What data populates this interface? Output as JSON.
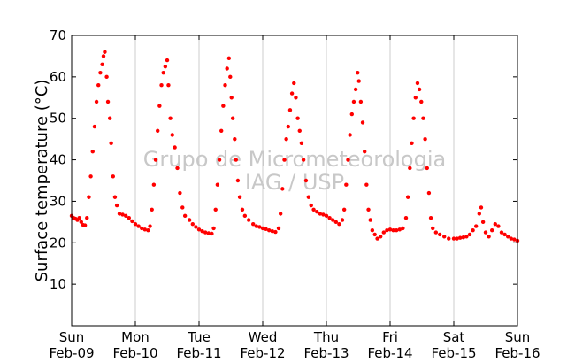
{
  "chart_data": {
    "type": "scatter",
    "ylabel": "Surface temperature (°C)",
    "xlabel": "",
    "ylim": [
      0,
      70
    ],
    "xlim": [
      0,
      7
    ],
    "yticks": [
      10,
      20,
      30,
      40,
      50,
      60,
      70
    ],
    "xticks": [
      {
        "x": 0,
        "day": "Sun",
        "date": "Feb-09"
      },
      {
        "x": 1,
        "day": "Mon",
        "date": "Feb-10"
      },
      {
        "x": 2,
        "day": "Tue",
        "date": "Feb-11"
      },
      {
        "x": 3,
        "day": "Wed",
        "date": "Feb-12"
      },
      {
        "x": 4,
        "day": "Thu",
        "date": "Feb-13"
      },
      {
        "x": 5,
        "day": "Fri",
        "date": "Feb-14"
      },
      {
        "x": 6,
        "day": "Sat",
        "date": "Feb-15"
      },
      {
        "x": 7,
        "day": "Sun",
        "date": "Feb-16"
      }
    ],
    "grid": "vertical",
    "marker_color": "#ff0000",
    "watermark": [
      "Grupo de Micrometeorologia",
      "IAG / USP"
    ],
    "series": [
      {
        "points": [
          [
            0.0,
            26.5
          ],
          [
            0.03,
            26.0
          ],
          [
            0.06,
            25.8
          ],
          [
            0.09,
            25.5
          ],
          [
            0.12,
            26.0
          ],
          [
            0.15,
            25.0
          ],
          [
            0.18,
            24.3
          ],
          [
            0.21,
            24.2
          ],
          [
            0.24,
            26.0
          ],
          [
            0.27,
            31.0
          ],
          [
            0.3,
            36.0
          ],
          [
            0.33,
            42.0
          ],
          [
            0.36,
            48.0
          ],
          [
            0.39,
            54.0
          ],
          [
            0.42,
            58.0
          ],
          [
            0.45,
            61.0
          ],
          [
            0.48,
            63.0
          ],
          [
            0.5,
            65.0
          ],
          [
            0.52,
            66.0
          ],
          [
            0.55,
            60.0
          ],
          [
            0.57,
            54.0
          ],
          [
            0.6,
            50.0
          ],
          [
            0.62,
            44.0
          ],
          [
            0.65,
            36.0
          ],
          [
            0.68,
            31.0
          ],
          [
            0.71,
            29.0
          ],
          [
            0.75,
            27.0
          ],
          [
            0.8,
            26.8
          ],
          [
            0.85,
            26.5
          ],
          [
            0.9,
            26.0
          ],
          [
            0.95,
            25.2
          ],
          [
            1.0,
            24.5
          ],
          [
            1.05,
            24.0
          ],
          [
            1.1,
            23.5
          ],
          [
            1.15,
            23.2
          ],
          [
            1.2,
            23.0
          ],
          [
            1.23,
            24.0
          ],
          [
            1.26,
            28.0
          ],
          [
            1.29,
            34.0
          ],
          [
            1.32,
            40.0
          ],
          [
            1.35,
            47.0
          ],
          [
            1.38,
            53.0
          ],
          [
            1.41,
            58.0
          ],
          [
            1.44,
            61.0
          ],
          [
            1.47,
            62.5
          ],
          [
            1.5,
            64.0
          ],
          [
            1.52,
            58.0
          ],
          [
            1.55,
            50.0
          ],
          [
            1.58,
            46.0
          ],
          [
            1.62,
            43.0
          ],
          [
            1.66,
            38.0
          ],
          [
            1.7,
            32.0
          ],
          [
            1.74,
            28.5
          ],
          [
            1.78,
            26.5
          ],
          [
            1.85,
            25.5
          ],
          [
            1.9,
            24.5
          ],
          [
            1.95,
            23.8
          ],
          [
            2.0,
            23.2
          ],
          [
            2.05,
            22.8
          ],
          [
            2.1,
            22.5
          ],
          [
            2.15,
            22.3
          ],
          [
            2.2,
            22.2
          ],
          [
            2.23,
            23.5
          ],
          [
            2.26,
            28.0
          ],
          [
            2.29,
            34.0
          ],
          [
            2.32,
            40.0
          ],
          [
            2.35,
            47.0
          ],
          [
            2.38,
            53.0
          ],
          [
            2.41,
            58.0
          ],
          [
            2.44,
            62.0
          ],
          [
            2.47,
            64.5
          ],
          [
            2.49,
            60.0
          ],
          [
            2.51,
            55.0
          ],
          [
            2.53,
            50.0
          ],
          [
            2.56,
            45.0
          ],
          [
            2.58,
            40.0
          ],
          [
            2.61,
            35.0
          ],
          [
            2.64,
            31.0
          ],
          [
            2.68,
            28.0
          ],
          [
            2.72,
            26.5
          ],
          [
            2.78,
            25.5
          ],
          [
            2.85,
            24.5
          ],
          [
            2.9,
            24.0
          ],
          [
            2.95,
            23.8
          ],
          [
            3.0,
            23.5
          ],
          [
            3.05,
            23.3
          ],
          [
            3.1,
            23.0
          ],
          [
            3.15,
            22.8
          ],
          [
            3.2,
            22.6
          ],
          [
            3.25,
            23.5
          ],
          [
            3.28,
            27.0
          ],
          [
            3.31,
            33.0
          ],
          [
            3.34,
            40.0
          ],
          [
            3.37,
            45.0
          ],
          [
            3.4,
            48.0
          ],
          [
            3.43,
            52.0
          ],
          [
            3.46,
            56.0
          ],
          [
            3.49,
            58.5
          ],
          [
            3.52,
            55.0
          ],
          [
            3.55,
            50.0
          ],
          [
            3.58,
            47.0
          ],
          [
            3.61,
            44.0
          ],
          [
            3.64,
            40.0
          ],
          [
            3.68,
            35.0
          ],
          [
            3.72,
            31.0
          ],
          [
            3.76,
            29.0
          ],
          [
            3.8,
            28.0
          ],
          [
            3.85,
            27.5
          ],
          [
            3.9,
            27.0
          ],
          [
            3.95,
            26.8
          ],
          [
            4.0,
            26.5
          ],
          [
            4.05,
            26.0
          ],
          [
            4.1,
            25.5
          ],
          [
            4.15,
            25.0
          ],
          [
            4.2,
            24.5
          ],
          [
            4.25,
            25.5
          ],
          [
            4.28,
            28.0
          ],
          [
            4.31,
            34.0
          ],
          [
            4.34,
            40.0
          ],
          [
            4.37,
            46.0
          ],
          [
            4.4,
            51.0
          ],
          [
            4.43,
            54.0
          ],
          [
            4.46,
            57.0
          ],
          [
            4.49,
            61.0
          ],
          [
            4.51,
            59.0
          ],
          [
            4.54,
            54.0
          ],
          [
            4.57,
            49.0
          ],
          [
            4.6,
            42.0
          ],
          [
            4.63,
            34.0
          ],
          [
            4.66,
            28.0
          ],
          [
            4.69,
            25.5
          ],
          [
            4.72,
            23.0
          ],
          [
            4.76,
            22.0
          ],
          [
            4.8,
            21.0
          ],
          [
            4.85,
            21.5
          ],
          [
            4.9,
            22.5
          ],
          [
            4.95,
            23.0
          ],
          [
            5.0,
            23.2
          ],
          [
            5.05,
            23.0
          ],
          [
            5.1,
            23.0
          ],
          [
            5.15,
            23.2
          ],
          [
            5.2,
            23.5
          ],
          [
            5.25,
            26.0
          ],
          [
            5.28,
            31.0
          ],
          [
            5.31,
            38.0
          ],
          [
            5.34,
            44.0
          ],
          [
            5.37,
            50.0
          ],
          [
            5.4,
            55.0
          ],
          [
            5.43,
            58.5
          ],
          [
            5.46,
            57.0
          ],
          [
            5.49,
            54.0
          ],
          [
            5.52,
            50.0
          ],
          [
            5.55,
            45.0
          ],
          [
            5.58,
            38.0
          ],
          [
            5.61,
            32.0
          ],
          [
            5.64,
            26.0
          ],
          [
            5.67,
            23.5
          ],
          [
            5.72,
            22.5
          ],
          [
            5.78,
            22.0
          ],
          [
            5.85,
            21.5
          ],
          [
            5.92,
            21.0
          ],
          [
            6.0,
            21.0
          ],
          [
            6.05,
            21.0
          ],
          [
            6.1,
            21.2
          ],
          [
            6.15,
            21.3
          ],
          [
            6.2,
            21.5
          ],
          [
            6.25,
            22.0
          ],
          [
            6.3,
            23.0
          ],
          [
            6.35,
            24.0
          ],
          [
            6.4,
            27.0
          ],
          [
            6.43,
            28.5
          ],
          [
            6.46,
            25.0
          ],
          [
            6.5,
            22.5
          ],
          [
            6.55,
            21.5
          ],
          [
            6.6,
            23.0
          ],
          [
            6.65,
            24.5
          ],
          [
            6.7,
            24.0
          ],
          [
            6.75,
            22.5
          ],
          [
            6.8,
            22.0
          ],
          [
            6.85,
            21.5
          ],
          [
            6.9,
            21.0
          ],
          [
            6.95,
            20.8
          ],
          [
            7.0,
            20.5
          ]
        ]
      }
    ]
  }
}
